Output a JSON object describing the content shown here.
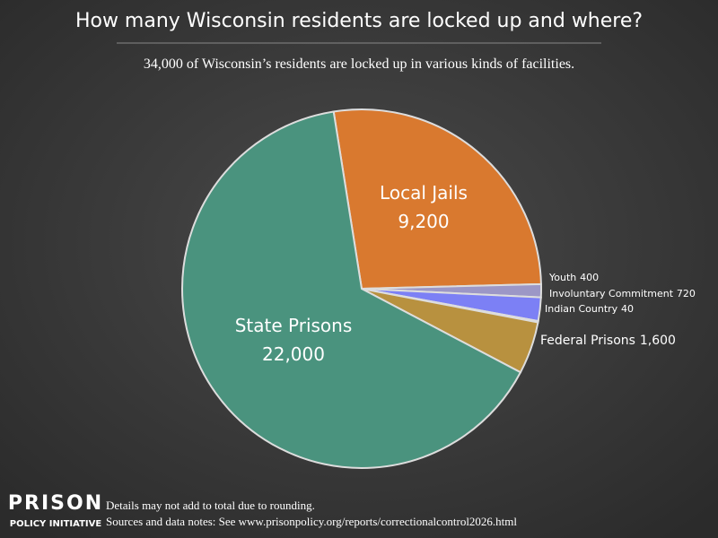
{
  "chart_data": {
    "type": "pie",
    "title": "How many Wisconsin residents are locked up and where?",
    "subtitle": "34,000 of Wisconsin’s residents are locked up in various kinds of facilities.",
    "categories": [
      "Local Jails",
      "Youth",
      "Involuntary Commitment",
      "Indian Country",
      "Federal Prisons",
      "State Prisons"
    ],
    "values": [
      9200,
      400,
      720,
      40,
      1600,
      22000
    ],
    "value_labels": [
      "9,200",
      "400",
      "720",
      "40",
      "1,600",
      "22,000"
    ],
    "colors": [
      "#d9792f",
      "#9c97c6",
      "#7c80f5",
      "#cfd0f2",
      "#b8913f",
      "#4a937e"
    ]
  },
  "footer": {
    "logo_line1": "PRISON",
    "logo_line2": "POLICY INITIATIVE",
    "notes": [
      "Details may not add to total due to rounding.",
      "Sources and data notes: See www.prisonpolicy.org/reports/correctionalcontrol2026.html"
    ]
  }
}
